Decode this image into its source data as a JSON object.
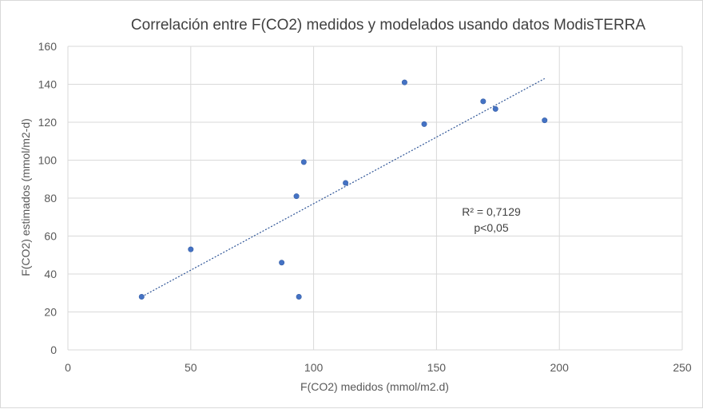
{
  "chart_data": {
    "type": "scatter",
    "title": "Correlación entre F(CO2) medidos y modelados usando  datos ModisTERRA",
    "xlabel": "F(CO2) medidos (mmol/m2.d)",
    "ylabel": "F(CO2) estimados (mmol/m2-d)",
    "xlim": [
      0,
      250
    ],
    "ylim": [
      0,
      160
    ],
    "x_ticks": [
      "0",
      "50",
      "100",
      "150",
      "200",
      "250"
    ],
    "y_ticks": [
      "0",
      "20",
      "40",
      "60",
      "80",
      "100",
      "120",
      "140",
      "160"
    ],
    "grid": true,
    "points": [
      {
        "x": 30,
        "y": 28
      },
      {
        "x": 50,
        "y": 53
      },
      {
        "x": 87,
        "y": 46
      },
      {
        "x": 93,
        "y": 81
      },
      {
        "x": 94,
        "y": 28
      },
      {
        "x": 96,
        "y": 99
      },
      {
        "x": 113,
        "y": 88
      },
      {
        "x": 137,
        "y": 141
      },
      {
        "x": 145,
        "y": 119
      },
      {
        "x": 169,
        "y": 131
      },
      {
        "x": 174,
        "y": 127
      },
      {
        "x": 194,
        "y": 121
      }
    ],
    "trendline": {
      "style": "dotted",
      "x_start": 30,
      "y_start": 28,
      "x_end": 194,
      "y_end": 143
    },
    "annotations": {
      "r_squared": "R² = 0,7129",
      "p_value": "p<0,05"
    },
    "colors": {
      "marker": "#4472c4",
      "trendline": "#2f5597",
      "grid": "#d9d9d9"
    }
  }
}
